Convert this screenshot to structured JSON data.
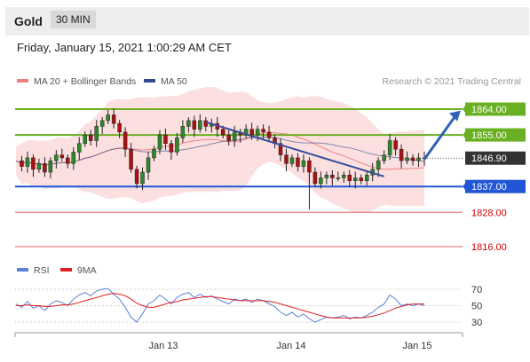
{
  "header": {
    "instrument": "Gold",
    "timeframe": "30 MIN",
    "datetime": "Friday, January 15, 2021 1:00:29 AM CET"
  },
  "colors": {
    "upper": "#6ab023",
    "lower": "#2255d6",
    "support": "#e06666",
    "arrow": "#2e62b8",
    "trend": "#3b4f9a"
  },
  "chart_data": [
    {
      "type": "line",
      "legend": [
        {
          "name": "MA 20 + Bollinger Bands",
          "color": "#f08080"
        },
        {
          "name": "MA 50",
          "color": "#2e4a8a"
        }
      ],
      "credit": "Research © 2021 Trading Central",
      "levels": [
        {
          "value": 1864.0,
          "label": "1864.00",
          "kind": "resistance"
        },
        {
          "value": 1855.0,
          "label": "1855.00",
          "kind": "resistance"
        },
        {
          "value": 1846.9,
          "label": "1846.90",
          "kind": "last"
        },
        {
          "value": 1837.0,
          "label": "1837.00",
          "kind": "pivot"
        },
        {
          "value": 1828.0,
          "label": "1828.00",
          "kind": "support"
        },
        {
          "value": 1816.0,
          "label": "1816.00",
          "kind": "support"
        }
      ],
      "x_ticks": [
        "Jan 13",
        "Jan 14",
        "Jan 15"
      ],
      "ylim": [
        1812,
        1868
      ],
      "close": [
        1846,
        1844,
        1847,
        1843,
        1845,
        1842,
        1846,
        1848,
        1847,
        1845,
        1849,
        1852,
        1855,
        1853,
        1858,
        1860,
        1862,
        1859,
        1856,
        1850,
        1843,
        1838,
        1842,
        1847,
        1850,
        1855,
        1852,
        1849,
        1854,
        1858,
        1860,
        1857,
        1860,
        1858,
        1859,
        1857,
        1855,
        1853,
        1856,
        1855,
        1857,
        1855,
        1857,
        1856,
        1854,
        1852,
        1848,
        1845,
        1847,
        1844,
        1846,
        1842,
        1838,
        1840,
        1841,
        1840,
        1840,
        1841,
        1839,
        1840,
        1839,
        1841,
        1843,
        1846,
        1848,
        1853,
        1850,
        1846,
        1847,
        1846,
        1847,
        1846.9
      ]
    },
    {
      "type": "line",
      "legend": [
        {
          "name": "RSI",
          "color": "#5b7fd9"
        },
        {
          "name": "9MA",
          "color": "#e02020"
        }
      ],
      "y_ticks": [
        "70",
        "50",
        "30"
      ],
      "ylim": [
        20,
        80
      ],
      "rsi": [
        52,
        48,
        55,
        47,
        50,
        44,
        52,
        56,
        54,
        50,
        58,
        63,
        66,
        62,
        68,
        70,
        71,
        64,
        58,
        48,
        36,
        30,
        40,
        52,
        56,
        63,
        58,
        52,
        60,
        64,
        66,
        60,
        64,
        60,
        62,
        58,
        55,
        52,
        58,
        56,
        58,
        54,
        58,
        56,
        52,
        49,
        42,
        38,
        42,
        36,
        40,
        34,
        30,
        33,
        36,
        35,
        36,
        38,
        34,
        36,
        35,
        38,
        42,
        48,
        52,
        63,
        58,
        50,
        52,
        50,
        52,
        50
      ],
      "rsi_ma": [
        50,
        50,
        51,
        50,
        50,
        49,
        49,
        50,
        51,
        51,
        52,
        54,
        56,
        58,
        60,
        62,
        64,
        65,
        64,
        62,
        58,
        53,
        50,
        48,
        48,
        50,
        52,
        54,
        55,
        57,
        58,
        59,
        60,
        61,
        61,
        60,
        59,
        58,
        57,
        56,
        56,
        56,
        56,
        56,
        55,
        54,
        52,
        50,
        48,
        46,
        44,
        42,
        40,
        38,
        36,
        35,
        35,
        35,
        35,
        35,
        35,
        36,
        37,
        39,
        41,
        44,
        47,
        49,
        51,
        52,
        52,
        52
      ]
    }
  ]
}
